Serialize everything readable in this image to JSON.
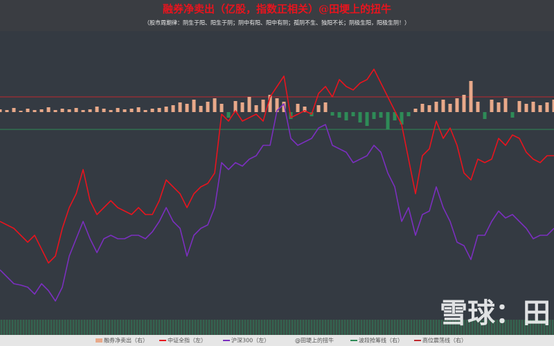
{
  "chart_data": {
    "type": "combo",
    "title": "融券净卖出（亿股，指数正相关）@田埂上的扭牛",
    "subtitle": "（股市周期律：阴生于阳、阳生于阴；阴中有阳、阳中有阴；孤阴不生、独阳不长；阴极生阳，阳极生阴！）",
    "ylim": [
      40,
      455
    ],
    "y2lim": [
      -298,
      117
    ],
    "series": [
      {
        "name": "融券净卖出（右）",
        "type": "bar",
        "axis": "y2",
        "color": "#e8a98a",
        "negative_color": "#2e8b57",
        "values": [
          4,
          3,
          6,
          2,
          5,
          3,
          4,
          7,
          3,
          5,
          4,
          6,
          3,
          4,
          8,
          5,
          3,
          6,
          4,
          5,
          7,
          3,
          5,
          6,
          8,
          10,
          14,
          12,
          18,
          9,
          15,
          20,
          12,
          -8,
          16,
          14,
          22,
          10,
          18,
          25,
          20,
          15,
          -10,
          12,
          8,
          -6,
          10,
          14,
          -5,
          -8,
          -12,
          -6,
          -15,
          -20,
          -10,
          -8,
          -25,
          -12,
          -18,
          -6,
          5,
          12,
          10,
          15,
          18,
          12,
          20,
          25,
          45,
          15,
          -10,
          18,
          14,
          20,
          -8,
          16,
          12,
          15,
          10,
          14,
          18
        ]
      },
      {
        "name": "中证全指（左）",
        "type": "line",
        "color": "#e8141e",
        "values": [
          180,
          175,
          170,
          160,
          150,
          160,
          140,
          120,
          130,
          170,
          200,
          220,
          255,
          210,
          190,
          200,
          210,
          200,
          195,
          190,
          200,
          190,
          190,
          210,
          240,
          230,
          220,
          200,
          220,
          230,
          235,
          250,
          335,
          325,
          340,
          325,
          330,
          335,
          325,
          360,
          375,
          390,
          330,
          335,
          340,
          335,
          365,
          375,
          360,
          385,
          375,
          370,
          380,
          385,
          400,
          380,
          360,
          340,
          320,
          270,
          220,
          275,
          285,
          325,
          300,
          315,
          290,
          250,
          240,
          270,
          265,
          270,
          300,
          290,
          305,
          300,
          280,
          270,
          265,
          275,
          275
        ]
      },
      {
        "name": "沪深300（左）",
        "type": "line",
        "color": "#7b2fbf",
        "values": [
          110,
          100,
          90,
          88,
          85,
          75,
          90,
          80,
          65,
          85,
          130,
          155,
          180,
          155,
          135,
          155,
          160,
          155,
          155,
          160,
          160,
          155,
          165,
          180,
          200,
          180,
          170,
          130,
          160,
          170,
          175,
          200,
          265,
          255,
          265,
          260,
          270,
          275,
          290,
          290,
          340,
          350,
          300,
          290,
          295,
          300,
          315,
          320,
          290,
          285,
          280,
          265,
          270,
          275,
          290,
          280,
          250,
          230,
          180,
          200,
          160,
          190,
          195,
          230,
          200,
          180,
          150,
          145,
          125,
          160,
          160,
          180,
          195,
          185,
          190,
          180,
          170,
          155,
          160,
          160,
          170
        ]
      }
    ],
    "credit": "@田埂上的扭牛",
    "reference_lines": [
      {
        "name": "波段抢筹线（右）",
        "color": "#2e8b57",
        "value": -25,
        "axis": "y2"
      },
      {
        "name": "高位震荡线（右）",
        "color": "#c0282d",
        "value": 22,
        "axis": "y2"
      }
    ],
    "watermark": "雪球：田"
  }
}
